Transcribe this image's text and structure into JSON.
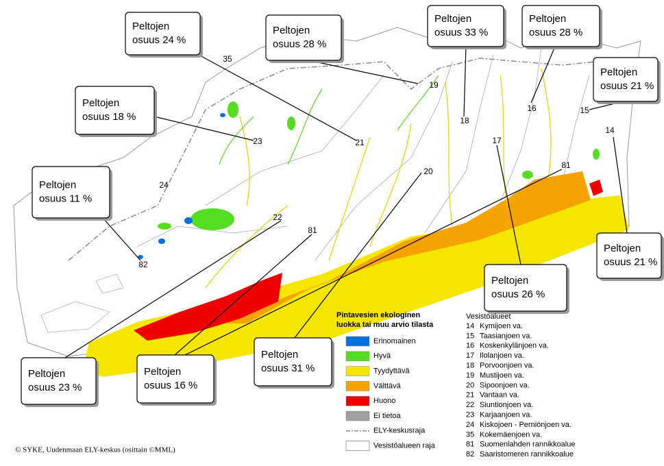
{
  "callouts": [
    {
      "line1": "Peltojen",
      "line2": "osuus 24 %"
    },
    {
      "line1": "Peltojen",
      "line2": "osuus 28 %"
    },
    {
      "line1": "Peltojen",
      "line2": "osuus 33 %"
    },
    {
      "line1": "Peltojen",
      "line2": "osuus 28 %"
    },
    {
      "line1": "Peltojen",
      "line2": "osuus 21 %"
    },
    {
      "line1": "Peltojen",
      "line2": "osuus 18 %"
    },
    {
      "line1": "Peltojen",
      "line2": "osuus 11 %"
    },
    {
      "line1": "Peltojen",
      "line2": "osuus 21 %"
    },
    {
      "line1": "Peltojen",
      "line2": "osuus 26 %"
    },
    {
      "line1": "Peltojen",
      "line2": "osuus 31 %"
    },
    {
      "line1": "Peltojen",
      "line2": "osuus 16 %"
    },
    {
      "line1": "Peltojen",
      "line2": "osuus 23 %"
    }
  ],
  "map_labels": [
    "35",
    "24",
    "23",
    "21",
    "19",
    "18",
    "16",
    "15",
    "14",
    "17",
    "20",
    "81",
    "22",
    "81",
    "82"
  ],
  "legend": {
    "title_line1": "Pintavesien ekologinen",
    "title_line2": "luokka tai muu arvio tilasta",
    "items": [
      {
        "label": "Erinomainen",
        "color": "#0070e0"
      },
      {
        "label": "Hyvä",
        "color": "#55dd22"
      },
      {
        "label": "Tyydyttävä",
        "color": "#f5e600"
      },
      {
        "label": "Välttävä",
        "color": "#f5a300"
      },
      {
        "label": "Huono",
        "color": "#ee0000"
      },
      {
        "label": "Ei tietoa",
        "color": "#a0a0a0"
      }
    ],
    "lines": [
      "ELY-keskusraja",
      "Vesistöalueen raja"
    ]
  },
  "watersheds": {
    "title": "Vesistöalueet",
    "items": [
      {
        "code": "14",
        "name": "Kymijoen va."
      },
      {
        "code": "15",
        "name": "Taasianjoen va."
      },
      {
        "code": "16",
        "name": "Koskenkylänjoen va."
      },
      {
        "code": "17",
        "name": "Ilolanjoen va."
      },
      {
        "code": "18",
        "name": "Porvoonjoen va."
      },
      {
        "code": "19",
        "name": "Mustijoen va."
      },
      {
        "code": "20",
        "name": "Sipoonjoen va."
      },
      {
        "code": "21",
        "name": "Vantaan va."
      },
      {
        "code": "22",
        "name": "Siuntionjoen va."
      },
      {
        "code": "23",
        "name": "Karjaanjoen va."
      },
      {
        "code": "24",
        "name": "Kiskojoen - Perniönjoen va."
      },
      {
        "code": "35",
        "name": "Kokemäenjoen va."
      },
      {
        "code": "81",
        "name": "Suomenlahden rannikkoalue"
      },
      {
        "code": "82",
        "name": "Saaristomeren rannikkoalue"
      }
    ]
  },
  "copyright": "© SYKE, Uudenmaan ELY-keskus (osittain ©MML)"
}
